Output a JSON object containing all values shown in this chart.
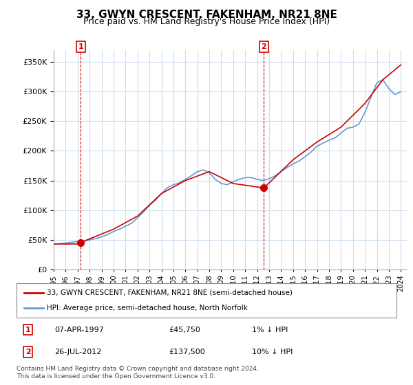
{
  "title": "33, GWYN CRESCENT, FAKENHAM, NR21 8NE",
  "subtitle": "Price paid vs. HM Land Registry's House Price Index (HPI)",
  "legend_label1": "33, GWYN CRESCENT, FAKENHAM, NR21 8NE (semi-detached house)",
  "legend_label2": "HPI: Average price, semi-detached house, North Norfolk",
  "annotation1_label": "1",
  "annotation1_date": "07-APR-1997",
  "annotation1_price": "£45,750",
  "annotation1_hpi": "1% ↓ HPI",
  "annotation2_label": "2",
  "annotation2_date": "26-JUL-2012",
  "annotation2_price": "£137,500",
  "annotation2_hpi": "10% ↓ HPI",
  "footer": "Contains HM Land Registry data © Crown copyright and database right 2024.\nThis data is licensed under the Open Government Licence v3.0.",
  "sale1_x": 1997.27,
  "sale1_y": 45750,
  "sale2_x": 2012.56,
  "sale2_y": 137500,
  "price_line_color": "#cc0000",
  "hpi_line_color": "#6699cc",
  "sale_marker_color": "#cc0000",
  "vline_color": "#cc0000",
  "grid_color": "#ccddee",
  "background_color": "#ffffff",
  "ylim": [
    0,
    370000
  ],
  "xlim": [
    1995,
    2024.5
  ],
  "yticks": [
    0,
    50000,
    100000,
    150000,
    200000,
    250000,
    300000,
    350000
  ],
  "xticks": [
    1995,
    1996,
    1997,
    1998,
    1999,
    2000,
    2001,
    2002,
    2003,
    2004,
    2005,
    2006,
    2007,
    2008,
    2009,
    2010,
    2011,
    2012,
    2013,
    2014,
    2015,
    2016,
    2017,
    2018,
    2019,
    2020,
    2021,
    2022,
    2023,
    2024
  ],
  "hpi_x": [
    1995.0,
    1995.5,
    1996.0,
    1996.5,
    1997.0,
    1997.5,
    1998.0,
    1998.5,
    1999.0,
    1999.5,
    2000.0,
    2000.5,
    2001.0,
    2001.5,
    2002.0,
    2002.5,
    2003.0,
    2003.5,
    2004.0,
    2004.5,
    2005.0,
    2005.5,
    2006.0,
    2006.5,
    2007.0,
    2007.5,
    2008.0,
    2008.5,
    2009.0,
    2009.5,
    2010.0,
    2010.5,
    2011.0,
    2011.5,
    2012.0,
    2012.5,
    2013.0,
    2013.5,
    2014.0,
    2014.5,
    2015.0,
    2015.5,
    2016.0,
    2016.5,
    2017.0,
    2017.5,
    2018.0,
    2018.5,
    2019.0,
    2019.5,
    2020.0,
    2020.5,
    2021.0,
    2021.5,
    2022.0,
    2022.5,
    2023.0,
    2023.5,
    2024.0
  ],
  "hpi_y": [
    43000,
    43500,
    44500,
    46000,
    47000,
    47500,
    50000,
    52000,
    55000,
    59000,
    64000,
    68000,
    73000,
    78000,
    87000,
    97000,
    108000,
    117000,
    128000,
    138000,
    143000,
    146000,
    152000,
    158000,
    165000,
    168000,
    163000,
    152000,
    145000,
    143000,
    148000,
    152000,
    155000,
    155000,
    152000,
    150000,
    153000,
    158000,
    165000,
    172000,
    178000,
    183000,
    190000,
    198000,
    208000,
    213000,
    218000,
    222000,
    230000,
    238000,
    240000,
    245000,
    265000,
    290000,
    315000,
    320000,
    305000,
    295000,
    300000
  ],
  "price_x": [
    1995.0,
    1997.27,
    1997.27,
    2000.0,
    2002.0,
    2004.0,
    2006.0,
    2008.0,
    2010.0,
    2012.56,
    2012.56,
    2015.0,
    2017.0,
    2019.0,
    2021.0,
    2022.5,
    2024.0
  ],
  "price_y": [
    43000,
    43000,
    45750,
    68000,
    90000,
    128000,
    150000,
    165000,
    145000,
    137500,
    137500,
    185000,
    215000,
    240000,
    280000,
    320000,
    345000
  ]
}
